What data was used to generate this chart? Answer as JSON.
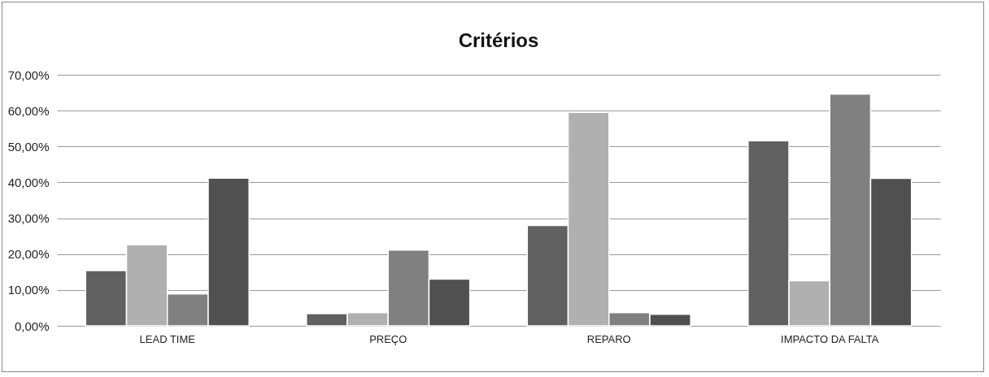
{
  "chart_data": {
    "type": "bar",
    "title": "Critérios",
    "categories": [
      "LEAD TIME",
      "PREÇO",
      "REPARO",
      "IMPACTO DA FALTA"
    ],
    "series": [
      {
        "color": "#606060",
        "values": [
          15.4,
          3.4,
          28.0,
          51.6
        ]
      },
      {
        "color": "#b0b0b0",
        "values": [
          22.6,
          3.7,
          59.5,
          12.6
        ]
      },
      {
        "color": "#808080",
        "values": [
          8.9,
          21.1,
          3.7,
          64.6
        ]
      },
      {
        "color": "#505050",
        "values": [
          41.2,
          13.0,
          3.2,
          41.1
        ]
      }
    ],
    "ylim": [
      0,
      70
    ],
    "yticks": [
      {
        "value": 0,
        "label": "0,00%"
      },
      {
        "value": 10,
        "label": "10,00%"
      },
      {
        "value": 20,
        "label": "20,00%"
      },
      {
        "value": 30,
        "label": "30,00%"
      },
      {
        "value": 40,
        "label": "40,00%"
      },
      {
        "value": 50,
        "label": "50,00%"
      },
      {
        "value": 60,
        "label": "60,00%"
      },
      {
        "value": 70,
        "label": "70,00%"
      }
    ],
    "grid": "y",
    "legend": false
  }
}
